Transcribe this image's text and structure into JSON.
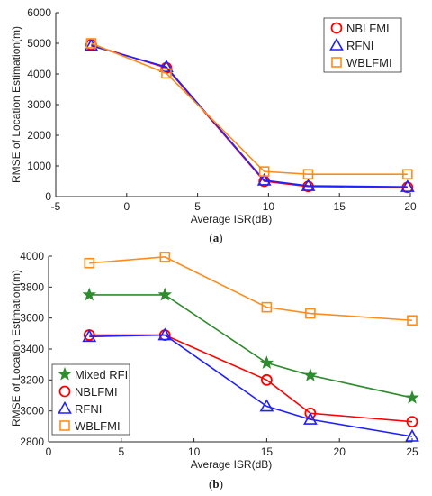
{
  "colors": {
    "NBLFMI": "#ff0000",
    "RFNI": "#1f1fff",
    "WBLFMI": "#ff8c1a",
    "Mixed RFI": "#2e8b2e",
    "axis": "#262626"
  },
  "captions": {
    "a_open": "(",
    "a_letter": "a",
    "a_close": ")",
    "b_open": "(",
    "b_letter": "b",
    "b_close": ")"
  },
  "chart_data": [
    {
      "id": "a",
      "type": "line",
      "xlabel": "Average ISR(dB)",
      "ylabel": "RMSE of Location Estimation(m)",
      "xlim": [
        -5,
        20
      ],
      "ylim": [
        0,
        6000
      ],
      "xticks": [
        -5,
        0,
        5,
        10,
        15,
        20
      ],
      "yticks": [
        0,
        1000,
        2000,
        3000,
        4000,
        5000,
        6000
      ],
      "grid": false,
      "legend_position": "top-right",
      "series": [
        {
          "name": "NBLFMI",
          "marker": "circle",
          "x": [
            -2.5,
            2.8,
            9.7,
            12.8,
            19.8
          ],
          "y": [
            4950,
            4200,
            500,
            330,
            300
          ]
        },
        {
          "name": "RFNI",
          "marker": "triangle",
          "x": [
            -2.5,
            2.8,
            9.7,
            12.8,
            19.8
          ],
          "y": [
            4920,
            4230,
            530,
            350,
            320
          ]
        },
        {
          "name": "WBLFMI",
          "marker": "square",
          "x": [
            -2.5,
            2.8,
            9.7,
            12.8,
            19.8
          ],
          "y": [
            5000,
            4020,
            820,
            730,
            730
          ]
        }
      ]
    },
    {
      "id": "b",
      "type": "line",
      "xlabel": "Average ISR(dB)",
      "ylabel": "RMSE of Location Estimation(m)",
      "xlim": [
        0,
        25
      ],
      "ylim": [
        2800,
        4000
      ],
      "xticks": [
        0,
        5,
        10,
        15,
        20,
        25
      ],
      "yticks": [
        2800,
        3000,
        3200,
        3400,
        3600,
        3800,
        4000
      ],
      "grid": false,
      "legend_position": "bottom-left",
      "series": [
        {
          "name": "Mixed RFI",
          "marker": "star",
          "x": [
            2.8,
            8,
            15,
            18,
            25
          ],
          "y": [
            3750,
            3750,
            3310,
            3230,
            3085
          ]
        },
        {
          "name": "NBLFMI",
          "marker": "circle",
          "x": [
            2.8,
            8,
            15,
            18,
            25
          ],
          "y": [
            3490,
            3490,
            3200,
            2985,
            2930
          ]
        },
        {
          "name": "RFNI",
          "marker": "triangle",
          "x": [
            2.8,
            8,
            15,
            18,
            25
          ],
          "y": [
            3480,
            3490,
            3030,
            2945,
            2835
          ]
        },
        {
          "name": "WBLFMI",
          "marker": "square",
          "x": [
            2.8,
            8,
            15,
            18,
            25
          ],
          "y": [
            3955,
            3995,
            3670,
            3630,
            3585
          ]
        }
      ]
    }
  ]
}
